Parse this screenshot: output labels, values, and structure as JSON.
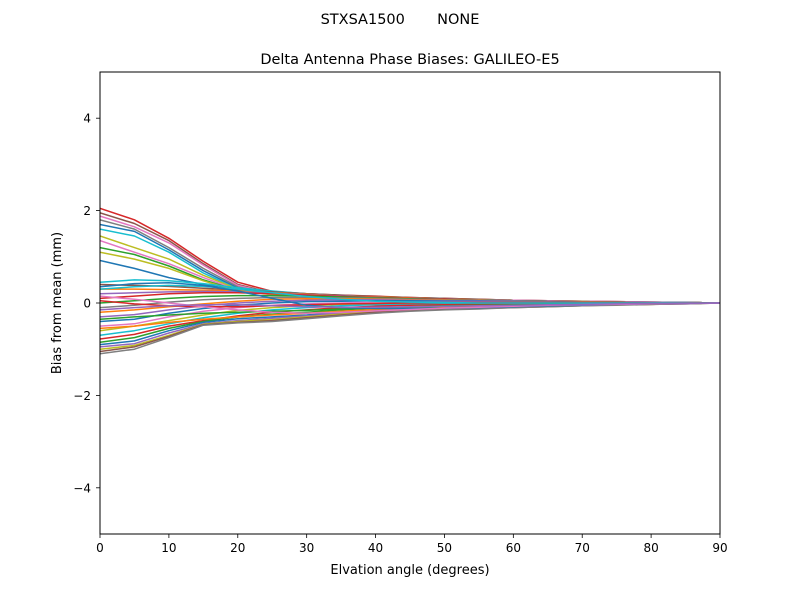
{
  "suptitle": "STXSA1500       NONE",
  "chart_data": {
    "type": "line",
    "title": "Delta Antenna Phase Biases: GALILEO-E5",
    "xlabel": "Elvation angle (degrees)",
    "ylabel": "Bias from mean (mm)",
    "xlim": [
      0,
      90
    ],
    "ylim": [
      -5,
      5
    ],
    "xticks": [
      0,
      10,
      20,
      30,
      40,
      50,
      60,
      70,
      80,
      90
    ],
    "yticks": [
      -4,
      -2,
      0,
      2,
      4
    ],
    "ytick_labels": [
      "−4",
      "−2",
      "0",
      "2",
      "4"
    ],
    "grid": false,
    "legend": "none",
    "x": [
      0,
      5,
      10,
      15,
      20,
      25,
      30,
      35,
      40,
      45,
      50,
      55,
      60,
      65,
      70,
      75,
      80,
      85,
      90
    ],
    "series": [
      {
        "color": "#d62728",
        "values": [
          2.05,
          1.8,
          1.4,
          0.9,
          0.45,
          0.25,
          0.2,
          0.17,
          0.15,
          0.12,
          0.1,
          0.08,
          0.06,
          0.05,
          0.04,
          0.03,
          0.02,
          0.01,
          0
        ]
      },
      {
        "color": "#8c564b",
        "values": [
          1.95,
          1.72,
          1.35,
          0.85,
          0.4,
          0.22,
          0.2,
          0.17,
          0.14,
          0.12,
          0.1,
          0.08,
          0.06,
          0.05,
          0.04,
          0.03,
          0.02,
          0.01,
          0
        ]
      },
      {
        "color": "#e377c2",
        "values": [
          1.88,
          1.65,
          1.3,
          0.82,
          0.38,
          0.21,
          0.18,
          0.16,
          0.13,
          0.11,
          0.09,
          0.07,
          0.06,
          0.05,
          0.04,
          0.03,
          0.02,
          0.01,
          0
        ]
      },
      {
        "color": "#7f7f7f",
        "values": [
          1.8,
          1.6,
          1.2,
          0.75,
          0.35,
          0.2,
          0.18,
          0.15,
          0.13,
          0.11,
          0.09,
          0.07,
          0.05,
          0.04,
          0.03,
          0.02,
          0.02,
          0.01,
          0
        ]
      },
      {
        "color": "#1f77b4",
        "values": [
          1.7,
          1.55,
          1.15,
          0.7,
          0.32,
          0.2,
          0.17,
          0.15,
          0.12,
          0.1,
          0.08,
          0.07,
          0.05,
          0.04,
          0.03,
          0.02,
          0.01,
          0.01,
          0
        ]
      },
      {
        "color": "#17becf",
        "values": [
          1.6,
          1.45,
          1.1,
          0.65,
          0.3,
          0.19,
          0.17,
          0.14,
          0.12,
          0.1,
          0.08,
          0.06,
          0.05,
          0.04,
          0.03,
          0.02,
          0.01,
          0.01,
          0
        ]
      },
      {
        "color": "#bcbd22",
        "values": [
          1.45,
          1.2,
          0.95,
          0.6,
          0.3,
          0.18,
          0.16,
          0.14,
          0.12,
          0.1,
          0.08,
          0.06,
          0.05,
          0.04,
          0.03,
          0.02,
          0.01,
          0.01,
          0
        ]
      },
      {
        "color": "#e377c2",
        "values": [
          1.35,
          1.1,
          0.85,
          0.55,
          0.28,
          0.18,
          0.16,
          0.13,
          0.11,
          0.09,
          0.07,
          0.06,
          0.05,
          0.04,
          0.03,
          0.02,
          0.01,
          0.01,
          0
        ]
      },
      {
        "color": "#2ca02c",
        "values": [
          1.2,
          1.05,
          0.8,
          0.5,
          0.27,
          0.2,
          0.17,
          0.14,
          0.11,
          0.09,
          0.07,
          0.06,
          0.05,
          0.04,
          0.03,
          0.02,
          0.01,
          0.01,
          0
        ]
      },
      {
        "color": "#bcbd22",
        "values": [
          1.1,
          0.95,
          0.75,
          0.48,
          0.26,
          0.19,
          0.16,
          0.13,
          0.11,
          0.09,
          0.07,
          0.06,
          0.05,
          0.04,
          0.03,
          0.02,
          0.01,
          0.01,
          0
        ]
      },
      {
        "color": "#1f77b4",
        "values": [
          0.92,
          0.75,
          0.55,
          0.4,
          0.28,
          0.22,
          0.18,
          0.15,
          0.12,
          0.1,
          0.08,
          0.06,
          0.05,
          0.04,
          0.03,
          0.02,
          0.01,
          0.01,
          0
        ]
      },
      {
        "color": "#17becf",
        "values": [
          0.45,
          0.5,
          0.48,
          0.42,
          0.33,
          0.26,
          0.2,
          0.16,
          0.13,
          0.11,
          0.09,
          0.07,
          0.05,
          0.04,
          0.03,
          0.02,
          0.01,
          0.01,
          0
        ]
      },
      {
        "color": "#8c564b",
        "values": [
          0.4,
          0.38,
          0.36,
          0.32,
          0.28,
          0.24,
          0.2,
          0.16,
          0.13,
          0.11,
          0.09,
          0.07,
          0.05,
          0.04,
          0.03,
          0.02,
          0.01,
          0.01,
          0
        ]
      },
      {
        "color": "#ff7f0e",
        "values": [
          0.3,
          0.3,
          0.29,
          0.28,
          0.26,
          0.22,
          0.19,
          0.15,
          0.13,
          0.11,
          0.08,
          0.07,
          0.05,
          0.04,
          0.03,
          0.02,
          0.01,
          0.01,
          0
        ]
      },
      {
        "color": "#9467bd",
        "values": [
          0.2,
          0.22,
          0.24,
          0.25,
          0.24,
          0.21,
          0.18,
          0.15,
          0.12,
          0.1,
          0.08,
          0.06,
          0.05,
          0.04,
          0.03,
          0.02,
          0.01,
          0.01,
          0
        ]
      },
      {
        "color": "#d62728",
        "values": [
          0.1,
          0.15,
          0.2,
          0.22,
          0.22,
          0.2,
          0.17,
          0.14,
          0.12,
          0.1,
          0.08,
          0.06,
          0.05,
          0.04,
          0.03,
          0.02,
          0.01,
          0.01,
          0
        ]
      },
      {
        "color": "#2ca02c",
        "values": [
          0.0,
          0.05,
          0.1,
          0.14,
          0.16,
          0.16,
          0.15,
          0.13,
          0.11,
          0.09,
          0.07,
          0.06,
          0.05,
          0.04,
          0.03,
          0.02,
          0.01,
          0.01,
          0
        ]
      },
      {
        "color": "#7f7f7f",
        "values": [
          -0.1,
          -0.05,
          0.02,
          0.07,
          0.1,
          0.12,
          0.12,
          0.11,
          0.1,
          0.08,
          0.07,
          0.06,
          0.05,
          0.04,
          0.03,
          0.02,
          0.01,
          0.01,
          0
        ]
      },
      {
        "color": "#ff7f0e",
        "values": [
          -0.2,
          -0.15,
          -0.08,
          -0.02,
          0.04,
          0.08,
          0.09,
          0.09,
          0.08,
          0.07,
          0.06,
          0.05,
          0.04,
          0.03,
          0.03,
          0.02,
          0.01,
          0.01,
          0
        ]
      },
      {
        "color": "#9467bd",
        "values": [
          -0.3,
          -0.25,
          -0.15,
          -0.06,
          0.0,
          0.04,
          0.06,
          0.07,
          0.07,
          0.06,
          0.05,
          0.05,
          0.04,
          0.03,
          0.02,
          0.02,
          0.01,
          0.01,
          0
        ]
      },
      {
        "color": "#1f77b4",
        "values": [
          -0.4,
          -0.35,
          -0.22,
          -0.12,
          -0.05,
          0.0,
          0.03,
          0.04,
          0.05,
          0.05,
          0.04,
          0.04,
          0.03,
          0.03,
          0.02,
          0.02,
          0.01,
          0.01,
          0
        ]
      },
      {
        "color": "#e377c2",
        "values": [
          -0.5,
          -0.45,
          -0.3,
          -0.18,
          -0.1,
          -0.05,
          -0.02,
          0.0,
          0.02,
          0.02,
          0.02,
          0.02,
          0.02,
          0.02,
          0.01,
          0.01,
          0.01,
          0.0,
          0
        ]
      },
      {
        "color": "#bcbd22",
        "values": [
          -0.6,
          -0.5,
          -0.38,
          -0.26,
          -0.16,
          -0.1,
          -0.06,
          -0.03,
          -0.01,
          0.0,
          0.0,
          0.0,
          0.01,
          0.01,
          0.01,
          0.01,
          0.0,
          0.0,
          0
        ]
      },
      {
        "color": "#17becf",
        "values": [
          -0.7,
          -0.6,
          -0.45,
          -0.32,
          -0.22,
          -0.15,
          -0.1,
          -0.06,
          -0.04,
          -0.03,
          -0.02,
          -0.01,
          -0.01,
          0.0,
          0.0,
          0.0,
          0.0,
          0.0,
          0
        ]
      },
      {
        "color": "#d62728",
        "values": [
          -0.78,
          -0.68,
          -0.5,
          -0.38,
          -0.28,
          -0.2,
          -0.15,
          -0.1,
          -0.07,
          -0.05,
          -0.04,
          -0.03,
          -0.02,
          -0.02,
          -0.01,
          -0.01,
          -0.01,
          0.0,
          0
        ]
      },
      {
        "color": "#2ca02c",
        "values": [
          -0.85,
          -0.75,
          -0.55,
          -0.4,
          -0.3,
          -0.24,
          -0.2,
          -0.15,
          -0.11,
          -0.08,
          -0.06,
          -0.05,
          -0.04,
          -0.03,
          -0.02,
          -0.02,
          -0.01,
          -0.01,
          0
        ]
      },
      {
        "color": "#1f77b4",
        "values": [
          -0.9,
          -0.82,
          -0.6,
          -0.42,
          -0.34,
          -0.3,
          -0.26,
          -0.2,
          -0.15,
          -0.12,
          -0.1,
          -0.08,
          -0.06,
          -0.05,
          -0.04,
          -0.03,
          -0.02,
          -0.01,
          0
        ]
      },
      {
        "color": "#9467bd",
        "values": [
          -0.95,
          -0.88,
          -0.65,
          -0.45,
          -0.38,
          -0.33,
          -0.28,
          -0.22,
          -0.17,
          -0.14,
          -0.12,
          -0.1,
          -0.08,
          -0.06,
          -0.05,
          -0.04,
          -0.03,
          -0.01,
          0
        ]
      },
      {
        "color": "#bcbd22",
        "values": [
          -1.0,
          -0.92,
          -0.7,
          -0.46,
          -0.4,
          -0.36,
          -0.3,
          -0.24,
          -0.19,
          -0.16,
          -0.13,
          -0.11,
          -0.09,
          -0.07,
          -0.05,
          -0.04,
          -0.03,
          -0.01,
          0
        ]
      },
      {
        "color": "#8c564b",
        "values": [
          -1.05,
          -0.95,
          -0.72,
          -0.47,
          -0.42,
          -0.38,
          -0.32,
          -0.26,
          -0.2,
          -0.17,
          -0.14,
          -0.12,
          -0.1,
          -0.08,
          -0.06,
          -0.04,
          -0.03,
          -0.02,
          0
        ]
      },
      {
        "color": "#7f7f7f",
        "values": [
          -1.1,
          -1.0,
          -0.75,
          -0.48,
          -0.43,
          -0.4,
          -0.34,
          -0.28,
          -0.22,
          -0.18,
          -0.15,
          -0.13,
          -0.1,
          -0.08,
          -0.06,
          -0.05,
          -0.03,
          -0.02,
          0
        ]
      },
      {
        "color": "#ff7f0e",
        "values": [
          -0.55,
          -0.5,
          -0.42,
          -0.35,
          -0.3,
          -0.26,
          -0.22,
          -0.18,
          -0.14,
          -0.12,
          -0.1,
          -0.08,
          -0.07,
          -0.05,
          -0.04,
          -0.03,
          -0.02,
          -0.01,
          0
        ]
      },
      {
        "color": "#2ca02c",
        "values": [
          -0.35,
          -0.3,
          -0.26,
          -0.22,
          -0.2,
          -0.18,
          -0.16,
          -0.13,
          -0.11,
          -0.09,
          -0.07,
          -0.06,
          -0.05,
          -0.04,
          -0.03,
          -0.02,
          -0.02,
          -0.01,
          0
        ]
      },
      {
        "color": "#d62728",
        "values": [
          0.05,
          -0.02,
          -0.06,
          -0.08,
          -0.08,
          -0.06,
          -0.04,
          -0.02,
          -0.01,
          0.0,
          0.01,
          0.01,
          0.01,
          0.01,
          0.01,
          0.01,
          0.0,
          0.0,
          0
        ]
      },
      {
        "color": "#17becf",
        "values": [
          0.3,
          0.35,
          0.38,
          0.36,
          0.3,
          0.22,
          0.14,
          0.08,
          0.04,
          0.02,
          0.01,
          0.0,
          0.0,
          0.0,
          0.0,
          0.0,
          0.0,
          0.0,
          0
        ]
      },
      {
        "color": "#1f77b4",
        "values": [
          0.35,
          0.42,
          0.44,
          0.38,
          0.26,
          0.1,
          -0.05,
          -0.1,
          -0.12,
          -0.12,
          -0.11,
          -0.1,
          -0.08,
          -0.06,
          -0.05,
          -0.03,
          -0.02,
          -0.01,
          0
        ]
      },
      {
        "color": "#e377c2",
        "values": [
          0.15,
          0.08,
          0.0,
          -0.08,
          -0.15,
          -0.2,
          -0.22,
          -0.2,
          -0.17,
          -0.14,
          -0.11,
          -0.09,
          -0.07,
          -0.05,
          -0.04,
          -0.03,
          -0.02,
          -0.01,
          0
        ]
      },
      {
        "color": "#9467bd",
        "values": [
          -0.15,
          -0.1,
          -0.06,
          -0.04,
          -0.04,
          -0.06,
          -0.08,
          -0.09,
          -0.09,
          -0.08,
          -0.07,
          -0.06,
          -0.05,
          -0.04,
          -0.03,
          -0.02,
          -0.01,
          -0.01,
          0
        ]
      }
    ]
  }
}
